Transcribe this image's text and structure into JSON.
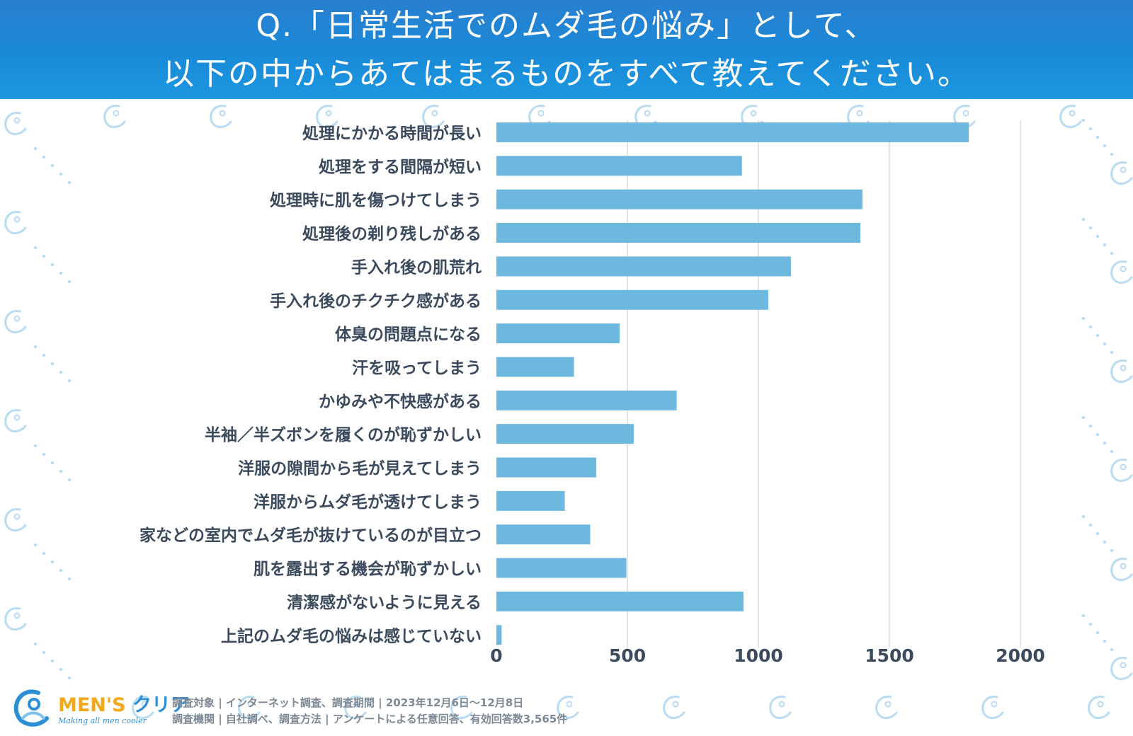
{
  "title": {
    "line1": "Q.「日常生活でのムダ毛の悩み」として、",
    "line2": "以下の中からあてはまるものをすべて教えてください。"
  },
  "colors": {
    "header": "#1b8ad8",
    "bar": "#6cb8df",
    "grid": "#dcdcdc",
    "label": "#3b4a5c",
    "pattern": "#b9dcf2"
  },
  "chart_data": {
    "type": "bar",
    "orientation": "horizontal",
    "categories": [
      "処理にかかる時間が長い",
      "処理をする間隔が短い",
      "処理時に肌を傷つけてしまう",
      "処理後の剃り残しがある",
      "手入れ後の肌荒れ",
      "手入れ後のチクチク感がある",
      "体臭の問題点になる",
      "汗を吸ってしまう",
      "かゆみや不快感がある",
      "半袖／半ズボンを履くのが恥ずかしい",
      "洋服の隙間から毛が見えてしまう",
      "洋服からムダ毛が透けてしまう",
      "家などの室内でムダ毛が抜けているのが目立つ",
      "肌を露出する機会が恥ずかしい",
      "清潔感がないように見える",
      "上記のムダ毛の悩みは感じていない"
    ],
    "values": [
      1803,
      937,
      1397,
      1389,
      1124,
      1038,
      470,
      296,
      688,
      524,
      381,
      261,
      358,
      496,
      943,
      20
    ],
    "xlim": [
      0,
      2000
    ],
    "xticks": [
      0,
      500,
      1000,
      1500,
      2000
    ],
    "grid": true,
    "legend": "none",
    "title": "",
    "xlabel": "",
    "ylabel": ""
  },
  "footer": {
    "brand_latin": "MEN'S",
    "brand_kana": "クリア",
    "tagline": "Making all men cooler",
    "note1": "調査対象 | インターネット調査、調査期間 | 2023年12月6日〜12月8日",
    "note2": "調査機関 | 自社調べ、調査方法 | アンケートによる任意回答、有効回答数3,565件"
  }
}
